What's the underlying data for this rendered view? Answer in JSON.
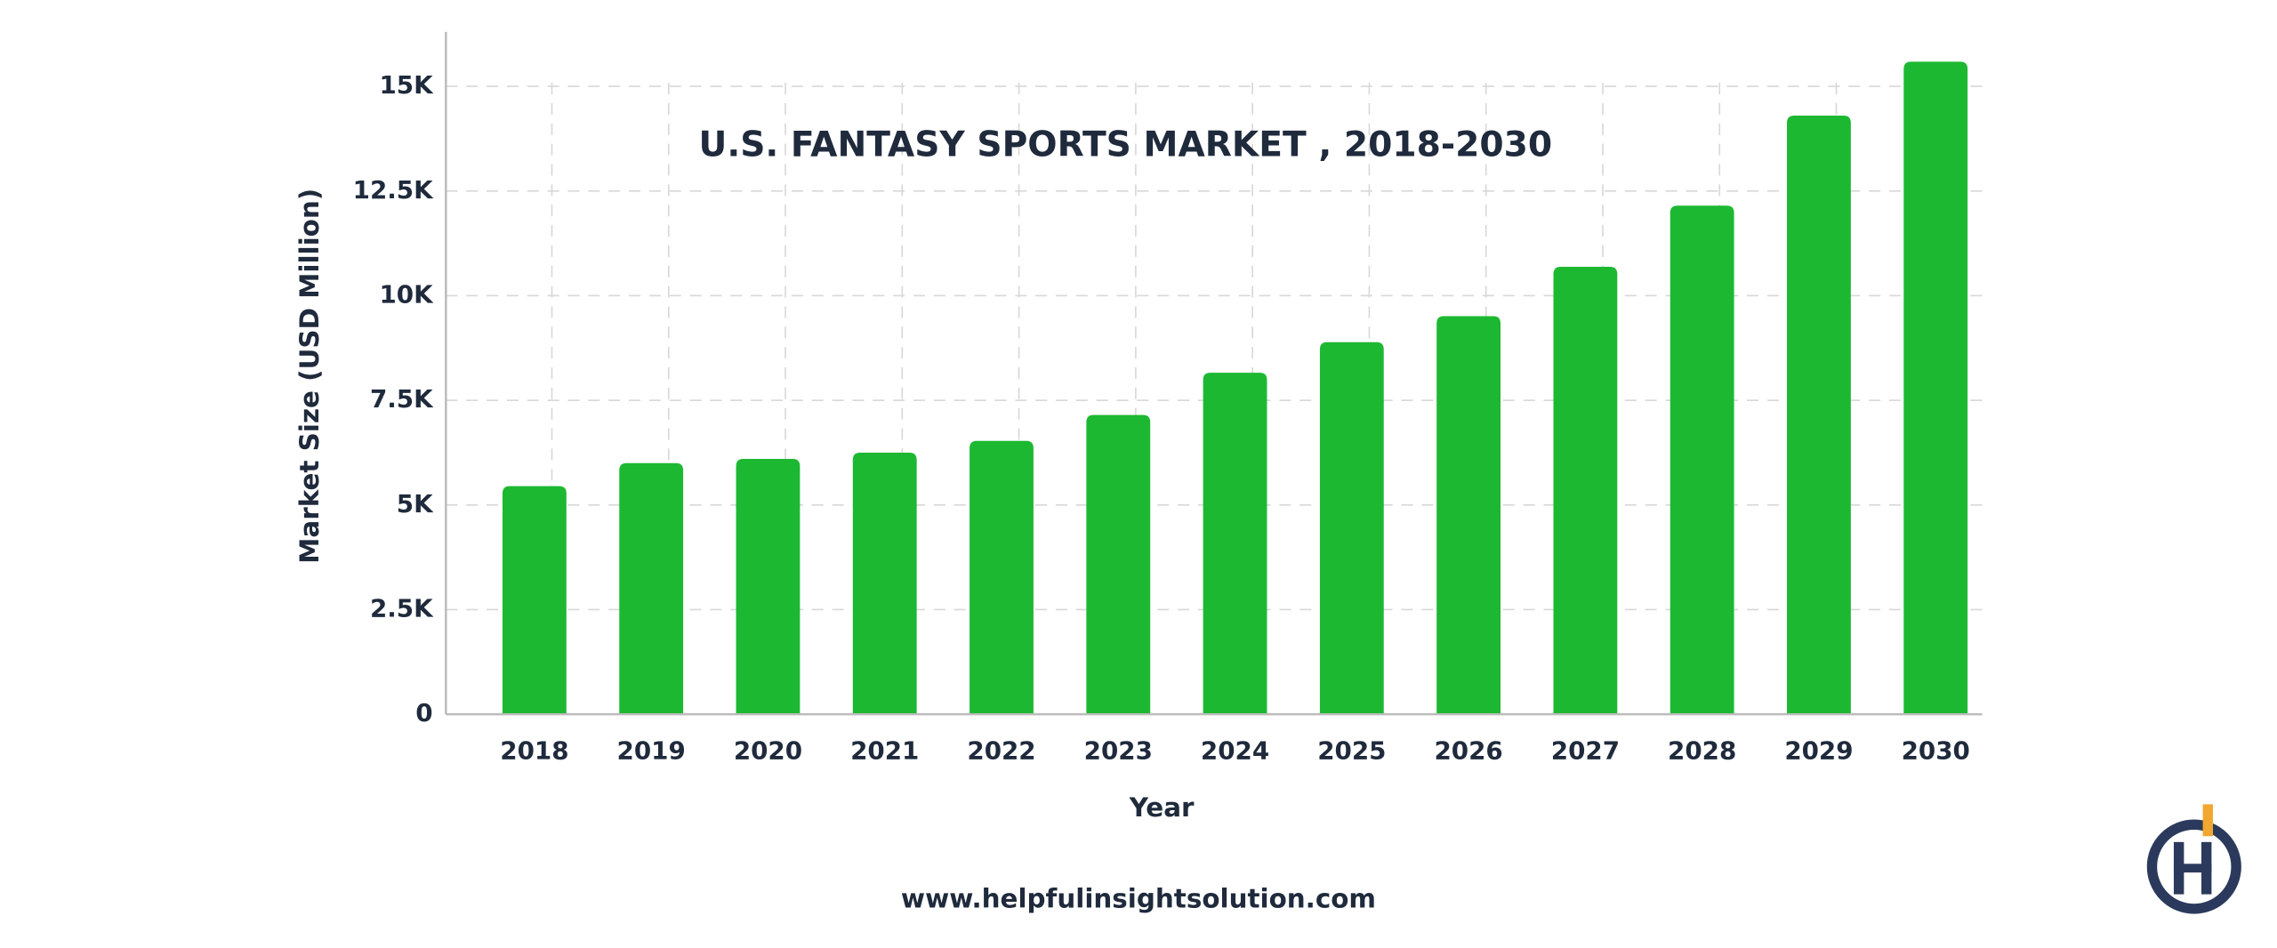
{
  "chart_data": {
    "type": "bar",
    "title": "U.S. FANTASY SPORTS MARKET , 2018-2030",
    "x_label": "Year",
    "y_label": "Market Size  (USD Million)",
    "source": "www.helpfulinsightsolution.com",
    "categories": [
      "2018",
      "2019",
      "2020",
      "2021",
      "2022",
      "2023",
      "2024",
      "2025",
      "2026",
      "2027",
      "2028",
      "2029",
      "2030"
    ],
    "values": [
      5450,
      6000,
      6100,
      6250,
      6530,
      7150,
      8160,
      8890,
      9510,
      10690,
      12150,
      14300,
      15590
    ],
    "color": "#1db832",
    "ylim": [
      0,
      16300
    ],
    "yticks": [
      0,
      {
        "value": 2500,
        "label": "2.5K"
      },
      {
        "value": 5000,
        "label": "5K"
      },
      {
        "value": 7500,
        "label": "7.5K"
      },
      {
        "value": 10000,
        "label": "10K"
      },
      {
        "value": 12500,
        "label": "12.5K"
      },
      {
        "value": 15000,
        "label": "15K"
      }
    ],
    "grid": true
  }
}
